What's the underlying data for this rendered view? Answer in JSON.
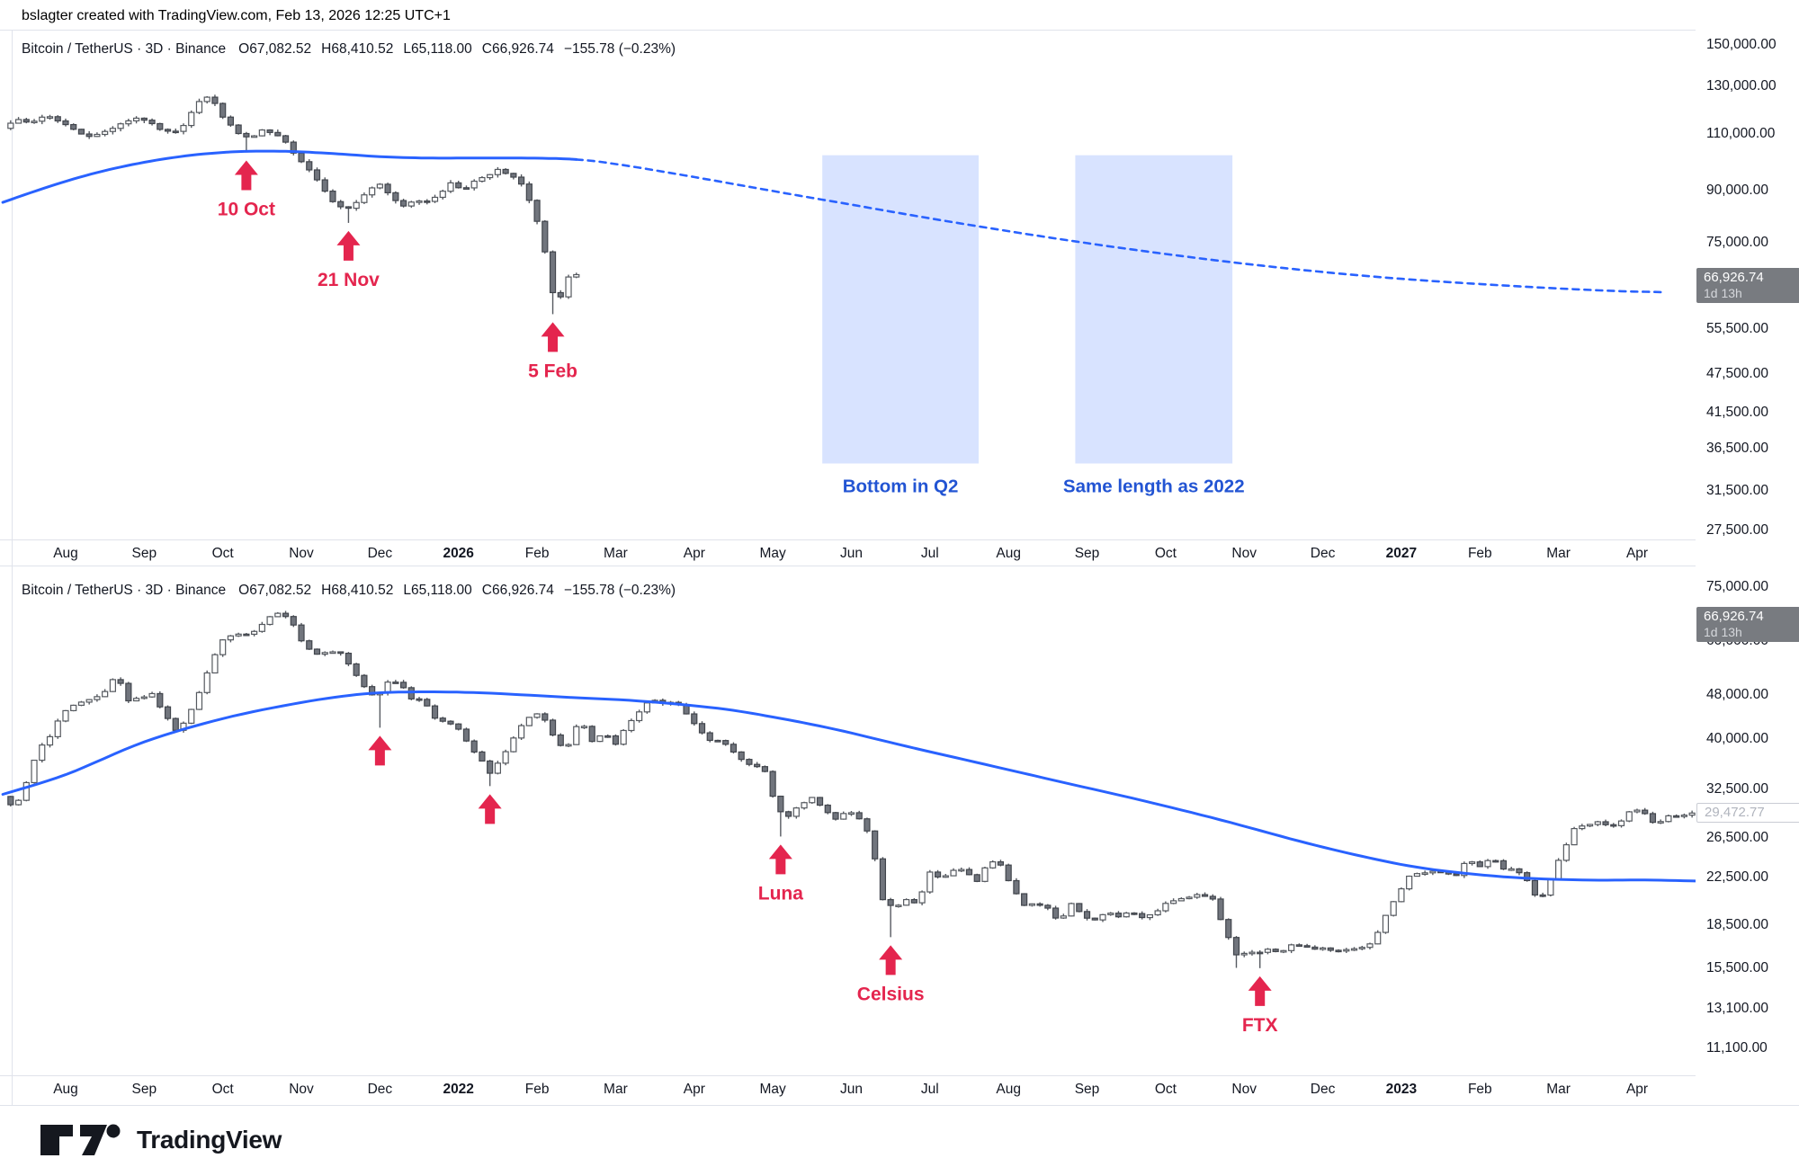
{
  "header": {
    "credit": "bslagter created with TradingView.com, Feb 13, 2026 12:25 UTC+1"
  },
  "watermark": {
    "brand": "TradingView"
  },
  "colors": {
    "accent_blue": "#2962ff",
    "zone_fill": "rgba(41,98,255,0.18)",
    "zone_text": "#2254d3",
    "annotation_red": "#e4254e",
    "candle_up_fill": "#ffffff",
    "candle_up_border": "#55595f",
    "candle_down_fill": "#71757d",
    "candle_down_border": "#41454c",
    "wick": "#565a61",
    "axis_text": "#131722",
    "separator": "#e0e3eb",
    "label_gray_bg": "#787b80"
  },
  "chart_data": [
    {
      "type": "candlestick",
      "scale": "log",
      "legend": {
        "series": "Bitcoin / TetherUS · 3D · Binance",
        "o": "O67,082.52",
        "h": "H68,410.52",
        "l": "L65,118.00",
        "c": "C66,926.74",
        "chg": "−155.78 (−0.23%)"
      },
      "y_ticks": [
        150000,
        130000,
        110000,
        90000,
        75000,
        55500,
        47500,
        41500,
        36500,
        31500,
        27500
      ],
      "months": [
        "Aug",
        "Sep",
        "Oct",
        "Nov",
        "Dec",
        "2026",
        "Feb",
        "Mar",
        "Apr",
        "May",
        "Jun",
        "Jul",
        "Aug",
        "Sep",
        "Oct",
        "Nov",
        "Dec",
        "2027",
        "Feb",
        "Mar",
        "Apr"
      ],
      "bold_months": [
        5,
        17
      ],
      "price_label": {
        "value": "66,926.74",
        "countdown": "1d 13h"
      },
      "bars": {
        "start": -0.25,
        "end": 7.1,
        "step": 0.1,
        "seed": 7
      },
      "price_path": [
        [
          -0.25,
          112500
        ],
        [
          -0.1,
          115500
        ],
        [
          0.1,
          114000
        ],
        [
          0.3,
          117500
        ],
        [
          0.5,
          114500
        ],
        [
          0.7,
          110500
        ],
        [
          0.9,
          108800
        ],
        [
          1.1,
          111500
        ],
        [
          1.3,
          114800
        ],
        [
          1.5,
          116500
        ],
        [
          1.7,
          112500
        ],
        [
          1.9,
          110000
        ],
        [
          2.05,
          113500
        ],
        [
          2.2,
          121500
        ],
        [
          2.32,
          125800
        ],
        [
          2.45,
          122000
        ],
        [
          2.6,
          114500
        ],
        [
          2.75,
          110000
        ],
        [
          2.9,
          108000
        ],
        [
          3.05,
          111000
        ],
        [
          3.2,
          110000
        ],
        [
          3.35,
          106500
        ],
        [
          3.5,
          101500
        ],
        [
          3.65,
          97000
        ],
        [
          3.8,
          92000
        ],
        [
          3.95,
          87000
        ],
        [
          4.1,
          84000
        ],
        [
          4.25,
          86500
        ],
        [
          4.4,
          90000
        ],
        [
          4.55,
          92000
        ],
        [
          4.7,
          88000
        ],
        [
          4.85,
          85500
        ],
        [
          5.0,
          87500
        ],
        [
          5.15,
          86500
        ],
        [
          5.3,
          89000
        ],
        [
          5.45,
          92500
        ],
        [
          5.6,
          90500
        ],
        [
          5.75,
          93000
        ],
        [
          5.9,
          94500
        ],
        [
          6.05,
          96800
        ],
        [
          6.2,
          95000
        ],
        [
          6.35,
          92500
        ],
        [
          6.5,
          84500
        ],
        [
          6.62,
          76000
        ],
        [
          6.74,
          63000
        ],
        [
          6.84,
          61500
        ],
        [
          6.94,
          66500
        ],
        [
          7.0,
          66926
        ]
      ],
      "spikes": [
        [
          2.8,
          103000
        ],
        [
          4.1,
          80500
        ],
        [
          6.7,
          58500
        ]
      ],
      "ma200_path": [
        [
          -0.3,
          86500
        ],
        [
          0.3,
          91500
        ],
        [
          0.9,
          96000
        ],
        [
          1.5,
          99500
        ],
        [
          2.1,
          102000
        ],
        [
          2.7,
          103300
        ],
        [
          3.3,
          103400
        ],
        [
          3.9,
          102600
        ],
        [
          4.5,
          101500
        ],
        [
          5.1,
          101000
        ],
        [
          5.7,
          101000
        ],
        [
          6.3,
          101000
        ],
        [
          7.0,
          100500
        ],
        [
          7.6,
          98500
        ],
        [
          8.5,
          94500
        ],
        [
          9.5,
          90000
        ],
        [
          10.5,
          85800
        ],
        [
          11.5,
          81800
        ],
        [
          12.5,
          78200
        ],
        [
          13.5,
          75000
        ],
        [
          14.5,
          72200
        ],
        [
          15.5,
          69800
        ],
        [
          16.5,
          67800
        ],
        [
          17.5,
          66200
        ],
        [
          18.5,
          65000
        ],
        [
          19.5,
          64000
        ],
        [
          20.3,
          63400
        ],
        [
          20.8,
          63200
        ]
      ],
      "ma_dash_from": 7.0,
      "annotations": [
        {
          "t": 2.8,
          "price": 103000,
          "label": "10 Oct"
        },
        {
          "t": 4.1,
          "price": 80500,
          "label": "21 Nov"
        },
        {
          "t": 6.7,
          "price": 58500,
          "label": "5 Feb"
        }
      ],
      "zones": [
        {
          "t1": 10.13,
          "t2": 12.12,
          "p_top": 102000,
          "p_bottom": 34700,
          "label": "Bottom in Q2"
        },
        {
          "t1": 13.35,
          "t2": 15.35,
          "p_top": 102000,
          "p_bottom": 34700,
          "label": "Same length as 2022"
        }
      ]
    },
    {
      "type": "candlestick",
      "scale": "log",
      "legend": {
        "series": "Bitcoin / TetherUS · 3D · Binance",
        "o": "O67,082.52",
        "h": "H68,410.52",
        "l": "L65,118.00",
        "c": "C66,926.74",
        "chg": "−155.78 (−0.23%)"
      },
      "y_ticks": [
        75000,
        60000,
        48000,
        40000,
        32500,
        26500,
        22500,
        18500,
        15500,
        13100,
        11100
      ],
      "months": [
        "Aug",
        "Sep",
        "Oct",
        "Nov",
        "Dec",
        "2022",
        "Feb",
        "Mar",
        "Apr",
        "May",
        "Jun",
        "Jul",
        "Aug",
        "Sep",
        "Oct",
        "Nov",
        "Dec",
        "2023",
        "Feb",
        "Mar",
        "Apr"
      ],
      "bold_months": [
        5,
        17
      ],
      "price_label": {
        "value": "66,926.74",
        "countdown": "1d 13h"
      },
      "last_bar_label": {
        "value": "29,472.77"
      },
      "bars": {
        "start": -0.25,
        "end": 21.25,
        "step": 0.1,
        "seed": 13
      },
      "price_path": [
        [
          -0.25,
          31500
        ],
        [
          -0.1,
          30000
        ],
        [
          0.05,
          33500
        ],
        [
          0.2,
          38500
        ],
        [
          0.35,
          40500
        ],
        [
          0.5,
          44500
        ],
        [
          0.7,
          46300
        ],
        [
          0.9,
          47200
        ],
        [
          1.05,
          48800
        ],
        [
          1.2,
          52300
        ],
        [
          1.35,
          46800
        ],
        [
          1.5,
          47500
        ],
        [
          1.65,
          48200
        ],
        [
          1.8,
          44500
        ],
        [
          1.95,
          41500
        ],
        [
          2.1,
          43500
        ],
        [
          2.25,
          48500
        ],
        [
          2.4,
          55000
        ],
        [
          2.55,
          60500
        ],
        [
          2.7,
          62000
        ],
        [
          2.85,
          61500
        ],
        [
          3.0,
          63000
        ],
        [
          3.15,
          66500
        ],
        [
          3.3,
          67800
        ],
        [
          3.45,
          64000
        ],
        [
          3.6,
          58500
        ],
        [
          3.75,
          57000
        ],
        [
          3.9,
          57500
        ],
        [
          4.05,
          57200
        ],
        [
          4.2,
          53500
        ],
        [
          4.35,
          49500
        ],
        [
          4.5,
          47500
        ],
        [
          4.65,
          50500
        ],
        [
          4.8,
          50800
        ],
        [
          4.95,
          47300
        ],
        [
          5.1,
          46800
        ],
        [
          5.25,
          43500
        ],
        [
          5.4,
          43000
        ],
        [
          5.55,
          41800
        ],
        [
          5.7,
          38500
        ],
        [
          5.8,
          37500
        ],
        [
          5.95,
          34800
        ],
        [
          6.1,
          36800
        ],
        [
          6.25,
          40000
        ],
        [
          6.4,
          43500
        ],
        [
          6.55,
          44300
        ],
        [
          6.7,
          42500
        ],
        [
          6.8,
          38800
        ],
        [
          6.95,
          39000
        ],
        [
          7.1,
          43500
        ],
        [
          7.25,
          39500
        ],
        [
          7.4,
          41000
        ],
        [
          7.55,
          39200
        ],
        [
          7.7,
          42500
        ],
        [
          7.85,
          44800
        ],
        [
          8.0,
          47200
        ],
        [
          8.15,
          46500
        ],
        [
          8.3,
          46800
        ],
        [
          8.45,
          44500
        ],
        [
          8.6,
          41500
        ],
        [
          8.75,
          39800
        ],
        [
          8.9,
          39500
        ],
        [
          9.05,
          38000
        ],
        [
          9.2,
          36200
        ],
        [
          9.3,
          36000
        ],
        [
          9.45,
          35000
        ],
        [
          9.6,
          30000
        ],
        [
          9.75,
          29000
        ],
        [
          9.9,
          30500
        ],
        [
          10.05,
          31300
        ],
        [
          10.2,
          29800
        ],
        [
          10.35,
          28800
        ],
        [
          10.5,
          29800
        ],
        [
          10.65,
          28800
        ],
        [
          10.8,
          26500
        ],
        [
          10.95,
          20500
        ],
        [
          11.1,
          19800
        ],
        [
          11.25,
          20500
        ],
        [
          11.4,
          20300
        ],
        [
          11.55,
          23000
        ],
        [
          11.7,
          22500
        ],
        [
          11.85,
          23300
        ],
        [
          12.0,
          23200
        ],
        [
          12.15,
          22200
        ],
        [
          12.3,
          24200
        ],
        [
          12.45,
          23800
        ],
        [
          12.6,
          21500
        ],
        [
          12.75,
          20000
        ],
        [
          12.9,
          20200
        ],
        [
          13.05,
          19800
        ],
        [
          13.2,
          18800
        ],
        [
          13.35,
          20200
        ],
        [
          13.5,
          19200
        ],
        [
          13.65,
          18900
        ],
        [
          13.8,
          19500
        ],
        [
          13.95,
          19200
        ],
        [
          14.1,
          19500
        ],
        [
          14.25,
          19100
        ],
        [
          14.4,
          19300
        ],
        [
          14.55,
          20300
        ],
        [
          14.7,
          20500
        ],
        [
          14.85,
          20800
        ],
        [
          15.0,
          21000
        ],
        [
          15.15,
          20600
        ],
        [
          15.3,
          18200
        ],
        [
          15.45,
          16300
        ],
        [
          15.6,
          16600
        ],
        [
          15.7,
          16400
        ],
        [
          15.85,
          16700
        ],
        [
          16.0,
          16500
        ],
        [
          16.15,
          17100
        ],
        [
          16.3,
          16900
        ],
        [
          16.45,
          16800
        ],
        [
          16.6,
          16800
        ],
        [
          16.75,
          16600
        ],
        [
          16.9,
          16700
        ],
        [
          17.05,
          16900
        ],
        [
          17.2,
          17300
        ],
        [
          17.35,
          19200
        ],
        [
          17.5,
          20900
        ],
        [
          17.65,
          22700
        ],
        [
          17.8,
          23000
        ],
        [
          17.95,
          23100
        ],
        [
          18.1,
          23000
        ],
        [
          18.25,
          22800
        ],
        [
          18.4,
          24300
        ],
        [
          18.55,
          23500
        ],
        [
          18.7,
          24600
        ],
        [
          18.85,
          23300
        ],
        [
          19.0,
          23400
        ],
        [
          19.15,
          22300
        ],
        [
          19.3,
          20300
        ],
        [
          19.45,
          22400
        ],
        [
          19.6,
          25000
        ],
        [
          19.75,
          27500
        ],
        [
          19.9,
          28000
        ],
        [
          20.05,
          28300
        ],
        [
          20.2,
          27800
        ],
        [
          20.35,
          28500
        ],
        [
          20.5,
          30100
        ],
        [
          20.65,
          29300
        ],
        [
          20.8,
          28000
        ],
        [
          20.95,
          29200
        ],
        [
          21.1,
          29000
        ],
        [
          21.25,
          29472
        ]
      ],
      "spikes": [
        [
          4.5,
          41900
        ],
        [
          5.9,
          32900
        ],
        [
          9.6,
          26700
        ],
        [
          11.0,
          17600
        ],
        [
          15.4,
          15500
        ],
        [
          15.7,
          15480
        ]
      ],
      "ma200_path": [
        [
          -0.3,
          31800
        ],
        [
          0.5,
          34500
        ],
        [
          1.5,
          39500
        ],
        [
          2.5,
          43500
        ],
        [
          3.5,
          46500
        ],
        [
          4.3,
          48200
        ],
        [
          5.0,
          48600
        ],
        [
          5.8,
          48400
        ],
        [
          6.8,
          47600
        ],
        [
          7.8,
          46800
        ],
        [
          8.8,
          45400
        ],
        [
          9.5,
          43800
        ],
        [
          10.3,
          41600
        ],
        [
          11.2,
          38800
        ],
        [
          12.2,
          36000
        ],
        [
          13.2,
          33400
        ],
        [
          14.2,
          31000
        ],
        [
          15.2,
          28600
        ],
        [
          16.2,
          26200
        ],
        [
          17.0,
          24600
        ],
        [
          17.8,
          23400
        ],
        [
          18.8,
          22600
        ],
        [
          19.8,
          22300
        ],
        [
          20.6,
          22300
        ],
        [
          21.3,
          22200
        ]
      ],
      "ma_dash_from": null,
      "annotations": [
        {
          "t": 4.5,
          "price": 41900,
          "label": ""
        },
        {
          "t": 5.9,
          "price": 32900,
          "label": ""
        },
        {
          "t": 9.6,
          "price": 26700,
          "label": "Luna"
        },
        {
          "t": 11.0,
          "price": 17600,
          "label": "Celsius"
        },
        {
          "t": 15.7,
          "price": 15480,
          "label": "FTX"
        }
      ],
      "zones": []
    }
  ]
}
